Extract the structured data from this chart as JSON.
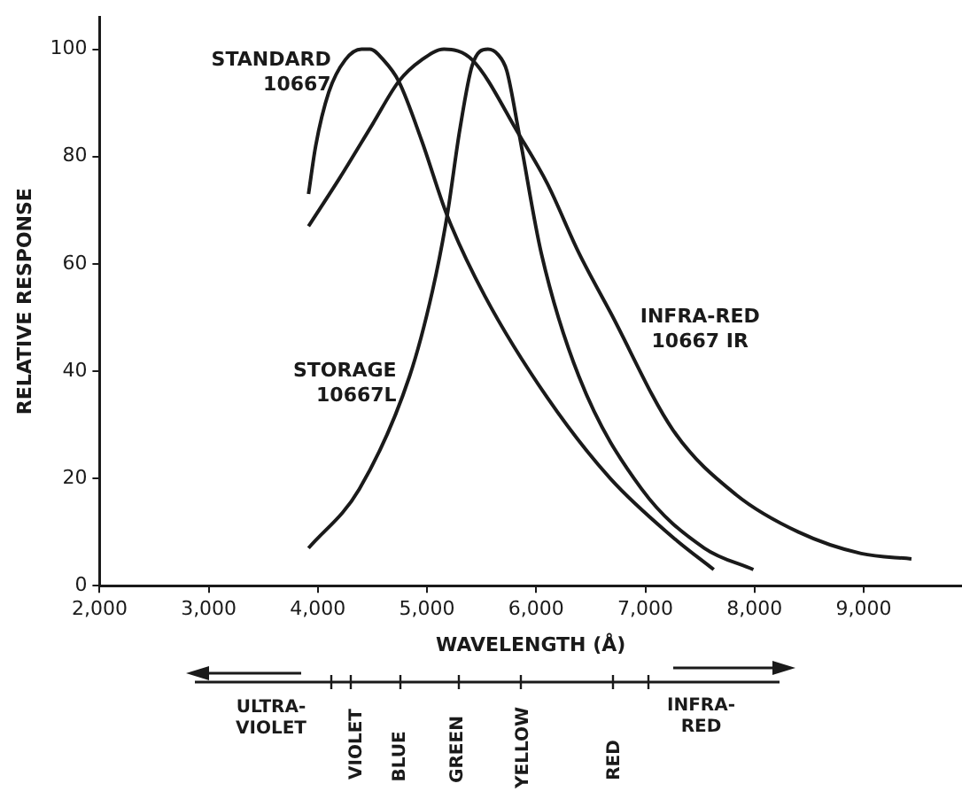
{
  "chart_data": {
    "type": "line",
    "xlabel": "WAVELENGTH (Å)",
    "ylabel": "RELATIVE RESPONSE",
    "xlim": [
      2000,
      9900
    ],
    "ylim": [
      0,
      106
    ],
    "xticks": [
      {
        "value": 2000,
        "label": "2,000"
      },
      {
        "value": 3000,
        "label": "3,000"
      },
      {
        "value": 4000,
        "label": "4,000"
      },
      {
        "value": 5000,
        "label": "5,000"
      },
      {
        "value": 6000,
        "label": "6,000"
      },
      {
        "value": 7000,
        "label": "7,000"
      },
      {
        "value": 8000,
        "label": "8,000"
      },
      {
        "value": 9000,
        "label": "9,000"
      }
    ],
    "yticks": [
      0,
      20,
      40,
      60,
      80,
      100
    ],
    "grid": false,
    "legend": false,
    "marker": "none",
    "line_style": "solid",
    "series": [
      {
        "name": "STANDARD\n10667",
        "color": "#1a1a1a",
        "x": [
          3914,
          3980,
          4100,
          4250,
          4400,
          4477,
          4600,
          4741,
          4950,
          5184,
          5529,
          6103,
          6678,
          7253,
          7626
        ],
        "values": [
          73,
          82,
          92,
          98,
          100,
          100,
          98,
          94,
          83,
          69,
          54,
          35,
          20,
          9,
          3
        ]
      },
      {
        "name": "STORAGE\n10667L",
        "color": "#1a1a1a",
        "x": [
          3914,
          4379,
          4839,
          5050,
          5184,
          5300,
          5414,
          5557,
          5650,
          5730,
          5845,
          6046,
          6391,
          6966,
          7540,
          7989
        ],
        "values": [
          7,
          18,
          39,
          55,
          69,
          85,
          97,
          100,
          99,
          96,
          84,
          62,
          39,
          18,
          7,
          3
        ]
      },
      {
        "name": "INFRA-RED\n10667 IR",
        "color": "#1a1a1a",
        "x": [
          3914,
          4200,
          4500,
          4741,
          4950,
          5155,
          5414,
          5845,
          6100,
          6391,
          6678,
          7253,
          7828,
          8402,
          8977,
          9437
        ],
        "values": [
          67,
          76,
          86,
          94,
          98,
          100,
          98,
          84,
          75,
          62,
          51,
          29,
          17,
          10,
          6,
          5
        ]
      }
    ],
    "annotations": [
      "ULTRA-\nVIOLET",
      "VIOLET",
      "BLUE",
      "GREEN",
      "YELLOW",
      "RED",
      "INFRA-\nRED"
    ]
  }
}
